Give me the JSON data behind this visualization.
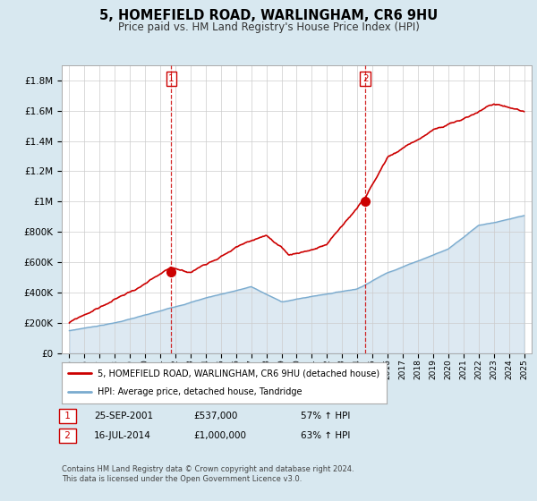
{
  "title": "5, HOMEFIELD ROAD, WARLINGHAM, CR6 9HU",
  "subtitle": "Price paid vs. HM Land Registry's House Price Index (HPI)",
  "ylabel_vals": [
    0,
    200000,
    400000,
    600000,
    800000,
    1000000,
    1200000,
    1400000,
    1600000,
    1800000
  ],
  "ylim": [
    0,
    1900000
  ],
  "xlim_start": 1994.5,
  "xlim_end": 2025.5,
  "sale1_x": 2001.73,
  "sale1_y": 537000,
  "sale2_x": 2014.54,
  "sale2_y": 1000000,
  "sale1_date": "25-SEP-2001",
  "sale1_price": "£537,000",
  "sale1_hpi": "57% ↑ HPI",
  "sale2_date": "16-JUL-2014",
  "sale2_price": "£1,000,000",
  "sale2_hpi": "63% ↑ HPI",
  "legend_line1": "5, HOMEFIELD ROAD, WARLINGHAM, CR6 9HU (detached house)",
  "legend_line2": "HPI: Average price, detached house, Tandridge",
  "footnote": "Contains HM Land Registry data © Crown copyright and database right 2024.\nThis data is licensed under the Open Government Licence v3.0.",
  "property_color": "#cc0000",
  "hpi_color": "#7aabcf",
  "background_color": "#d8e8f0",
  "plot_bg": "#ffffff",
  "grid_color": "#cccccc"
}
